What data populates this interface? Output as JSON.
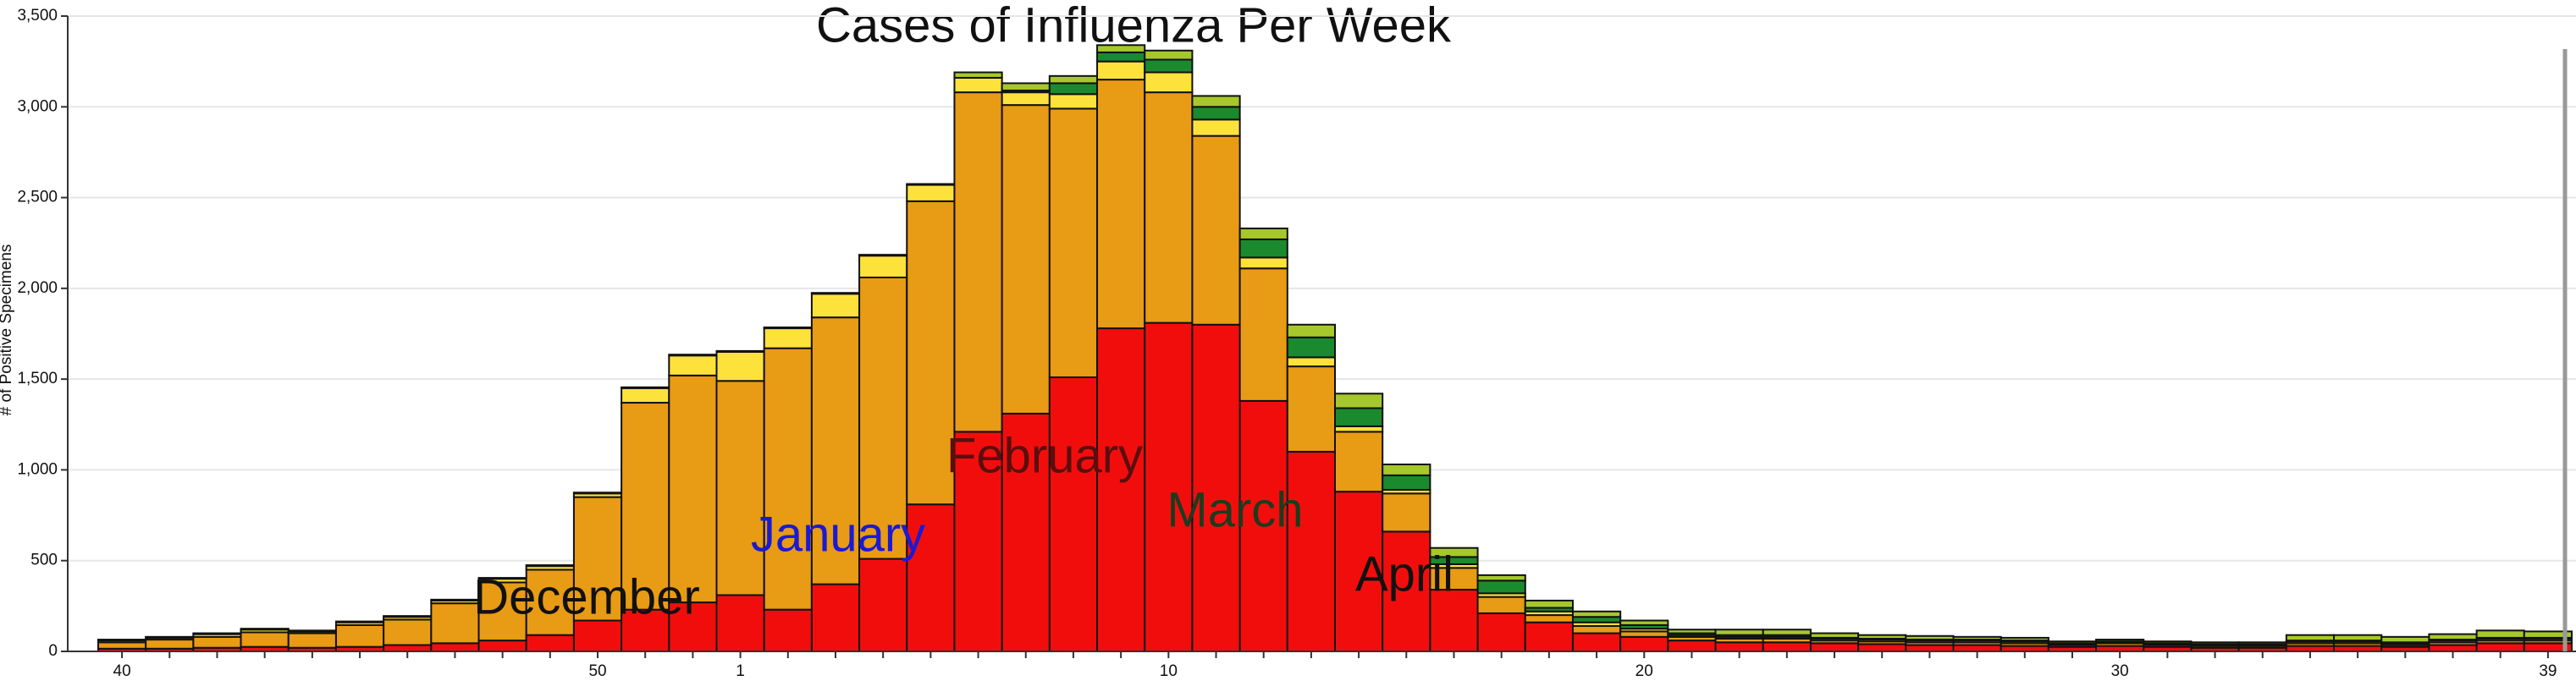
{
  "chart_data": {
    "type": "stacked_bar",
    "title": "Cases of Influenza Per Week",
    "y_label": "# of Positive Specimens",
    "categories": [
      40,
      null,
      null,
      null,
      null,
      null,
      null,
      null,
      null,
      null,
      50,
      null,
      null,
      1,
      null,
      null,
      null,
      null,
      null,
      null,
      null,
      null,
      10,
      null,
      null,
      null,
      null,
      null,
      null,
      null,
      null,
      null,
      20,
      null,
      null,
      null,
      null,
      null,
      null,
      null,
      null,
      null,
      30,
      null,
      null,
      null,
      null,
      null,
      null,
      null,
      null,
      39
    ],
    "series": [
      {
        "color": "#f20d0d",
        "values": [
          15,
          15,
          20,
          25,
          20,
          25,
          35,
          45,
          60,
          90,
          170,
          230,
          270,
          310,
          230,
          370,
          510,
          810,
          1210,
          1310,
          1510,
          1780,
          1810,
          1800,
          1380,
          1100,
          880,
          660,
          340,
          210,
          160,
          100,
          80,
          60,
          50,
          50,
          45,
          40,
          35,
          35,
          30,
          25,
          30,
          25,
          20,
          20,
          30,
          30,
          25,
          35,
          45,
          45
        ]
      },
      {
        "color": "#e89b14",
        "values": [
          35,
          50,
          60,
          80,
          80,
          120,
          140,
          220,
          320,
          360,
          680,
          1140,
          1250,
          1180,
          1440,
          1470,
          1550,
          1670,
          1870,
          1700,
          1480,
          1370,
          1270,
          1040,
          730,
          470,
          330,
          210,
          120,
          90,
          40,
          40,
          30,
          20,
          20,
          20,
          15,
          15,
          15,
          15,
          15,
          10,
          15,
          10,
          10,
          10,
          15,
          15,
          10,
          15,
          15,
          15
        ]
      },
      {
        "color": "#fde23c",
        "values": [
          10,
          10,
          15,
          15,
          10,
          15,
          15,
          15,
          20,
          20,
          20,
          80,
          110,
          160,
          110,
          130,
          120,
          90,
          80,
          70,
          80,
          100,
          110,
          90,
          60,
          50,
          30,
          20,
          20,
          20,
          20,
          20,
          15,
          10,
          10,
          10,
          10,
          10,
          10,
          10,
          10,
          5,
          5,
          5,
          5,
          5,
          10,
          10,
          10,
          10,
          10,
          10
        ]
      },
      {
        "color": "#1b8a2e",
        "values": [
          0,
          0,
          0,
          0,
          0,
          0,
          0,
          0,
          0,
          0,
          0,
          0,
          0,
          0,
          0,
          0,
          0,
          0,
          0,
          10,
          60,
          50,
          70,
          70,
          100,
          110,
          100,
          80,
          40,
          70,
          20,
          30,
          20,
          10,
          10,
          10,
          5,
          5,
          5,
          5,
          5,
          5,
          5,
          5,
          5,
          5,
          5,
          5,
          5,
          5,
          5,
          5
        ]
      },
      {
        "color": "#a6c82c",
        "values": [
          5,
          5,
          5,
          5,
          5,
          5,
          5,
          5,
          5,
          5,
          5,
          5,
          5,
          5,
          5,
          5,
          5,
          5,
          30,
          40,
          40,
          40,
          50,
          60,
          60,
          70,
          80,
          60,
          50,
          30,
          40,
          30,
          25,
          20,
          30,
          30,
          25,
          20,
          20,
          15,
          15,
          10,
          10,
          10,
          10,
          10,
          30,
          30,
          30,
          30,
          40,
          35
        ]
      }
    ],
    "annotations": [
      {
        "text": "December",
        "color": "#111111"
      },
      {
        "text": "January",
        "color": "#1a1ad4"
      },
      {
        "text": "February",
        "color": "#5a0e0e"
      },
      {
        "text": "March",
        "color": "#1e3a1e"
      },
      {
        "text": "April",
        "color": "#111111"
      }
    ],
    "ylim": [
      0,
      3500
    ],
    "yticks": [
      0,
      {
        "value": 500,
        "label": "500"
      },
      {
        "value": 1000,
        "label": "1,000"
      },
      {
        "value": 1500,
        "label": "1,500"
      },
      {
        "value": 2000,
        "label": "2,000"
      },
      {
        "value": 2500,
        "label": "2,500"
      },
      {
        "value": 3000,
        "label": "3,000"
      },
      {
        "value": 3500,
        "label": "3,500"
      }
    ],
    "grid": true
  }
}
